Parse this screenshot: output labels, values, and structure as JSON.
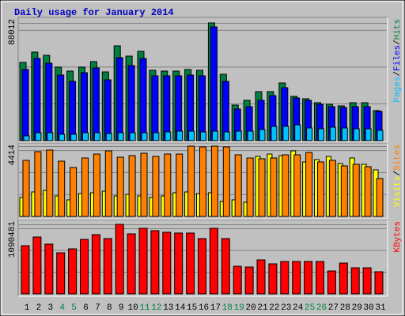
{
  "chart_data": {
    "type": "bar",
    "title": "Daily usage for January 2014",
    "categories": [
      "1",
      "2",
      "3",
      "4",
      "5",
      "6",
      "7",
      "8",
      "9",
      "10",
      "11",
      "12",
      "13",
      "14",
      "15",
      "16",
      "17",
      "18",
      "19",
      "20",
      "21",
      "22",
      "23",
      "24",
      "25",
      "26",
      "27",
      "28",
      "29",
      "30",
      "31"
    ],
    "category_colors": [
      "#000000",
      "#000000",
      "#000000",
      "#008040",
      "#008040",
      "#000000",
      "#000000",
      "#000000",
      "#000000",
      "#000000",
      "#008040",
      "#008040",
      "#000000",
      "#000000",
      "#000000",
      "#000000",
      "#000000",
      "#008040",
      "#008040",
      "#000000",
      "#000000",
      "#000000",
      "#000000",
      "#000000",
      "#008040",
      "#008040",
      "#000000",
      "#000000",
      "#000000",
      "#000000",
      "#000000"
    ],
    "legend_separator": "/",
    "panels": [
      {
        "ylim": [
          0,
          88012
        ],
        "yticks": [
          88012
        ],
        "series": [
          {
            "name": "Hits",
            "color": "#008040",
            "values": [
              58480,
              66160,
              63800,
              54940,
              51980,
              54940,
              59070,
              51390,
              70880,
              63200,
              66750,
              52570,
              51980,
              51980,
              53160,
              52570,
              88012,
              49620,
              26580,
              30130,
              36620,
              36620,
              43120,
              33080,
              31310,
              28350,
              27170,
              25990,
              28350,
              28350,
              22450
            ]
          },
          {
            "name": "Files",
            "color": "#0000FF",
            "values": [
              53160,
              61430,
              57890,
              49030,
              44300,
              50800,
              54340,
              45480,
              62020,
              56120,
              61430,
              48440,
              48440,
              48440,
              49030,
              48440,
              85060,
              44300,
              23630,
              25400,
              30130,
              33670,
              39580,
              31900,
              30130,
              27170,
              25400,
              24810,
              25400,
              25400,
              21860
            ]
          },
          {
            "name": "Pages",
            "color": "#00C0FF",
            "values": [
              3540,
              5910,
              5910,
              4730,
              4730,
              5910,
              5910,
              5320,
              5910,
              5910,
              5910,
              5910,
              6500,
              7090,
              7090,
              6500,
              7090,
              6500,
              7090,
              7090,
              8270,
              10630,
              10630,
              11810,
              9450,
              8860,
              10040,
              9450,
              8860,
              8860,
              7680
            ]
          }
        ]
      },
      {
        "ylim": [
          0,
          4414
        ],
        "yticks": [
          4414
        ],
        "series": [
          {
            "name": "Visits",
            "color": "#FFFF00",
            "values": [
              1190,
              1538,
              1637,
              1290,
              1042,
              1438,
              1488,
              1587,
              1290,
              1389,
              1290,
              1190,
              1290,
              1488,
              1538,
              1438,
              1488,
              942,
              1042,
              893,
              3770,
              3918,
              3819,
              4117,
              3422,
              3571,
              3770,
              3323,
              3670,
              3274,
              2926
            ]
          },
          {
            "name": "Sites",
            "color": "#FF8000",
            "values": [
              3522,
              4067,
              4166,
              3472,
              3075,
              3670,
              3918,
              4117,
              3720,
              3819,
              3968,
              3770,
              3918,
              3918,
              4414,
              4365,
              4414,
              4365,
              3869,
              3670,
              3621,
              3670,
              3869,
              3869,
              4018,
              3422,
              3522,
              3174,
              3274,
              3125,
              2381
            ]
          }
        ]
      },
      {
        "ylim": [
          0,
          1090481
        ],
        "yticks": [
          1090481
        ],
        "series": [
          {
            "name": "KBytes",
            "color": "#FF0000",
            "values": [
              755900,
              892200,
              780700,
              644400,
              706300,
              855000,
              929400,
              867400,
              1090481,
              941800,
              1028500,
              991400,
              966600,
              954200,
              954200,
              867400,
              1028500,
              867400,
              433700,
              421300,
              532900,
              470900,
              508100,
              508100,
              508100,
              508100,
              359400,
              483300,
              408900,
              408900,
              347000
            ]
          }
        ]
      }
    ]
  }
}
